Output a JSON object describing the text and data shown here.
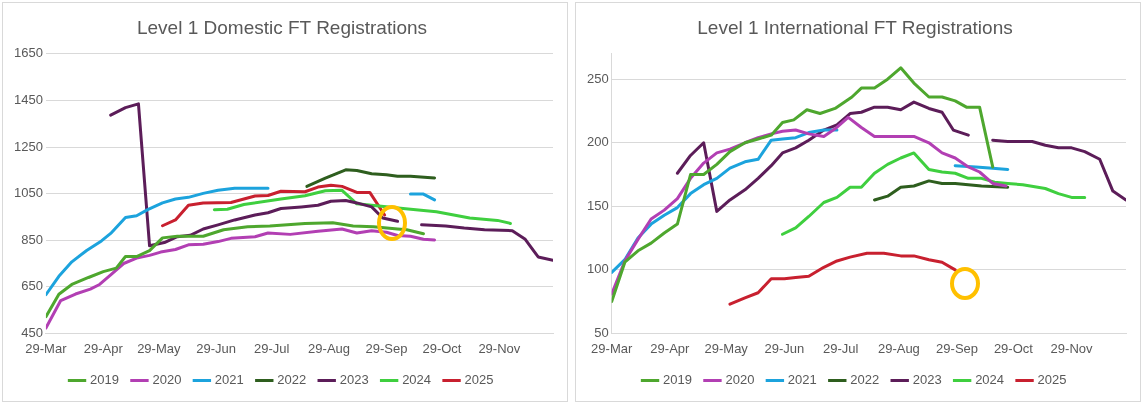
{
  "chart_data": [
    {
      "type": "line",
      "title": "Level 1 Domestic FT Registrations",
      "xlim": [
        "--03-29",
        "--12-28"
      ],
      "ylim": [
        450,
        1650
      ],
      "xticks": [
        {
          "value": "--03-29",
          "label": "29-Mar"
        },
        {
          "value": "--04-29",
          "label": "29-Apr"
        },
        {
          "value": "--05-29",
          "label": "29-May"
        },
        {
          "value": "--06-29",
          "label": "29-Jun"
        },
        {
          "value": "--07-29",
          "label": "29-Jul"
        },
        {
          "value": "--08-29",
          "label": "29-Aug"
        },
        {
          "value": "--09-29",
          "label": "29-Sep"
        },
        {
          "value": "--10-29",
          "label": "29-Oct"
        },
        {
          "value": "--11-29",
          "label": "29-Nov"
        }
      ],
      "yticks": [
        450,
        650,
        850,
        1050,
        1250,
        1450,
        1650
      ],
      "grid": "y",
      "legend": "bottom",
      "marker": "none",
      "line_style": "solid",
      "series": [
        {
          "name": "2019",
          "color": "#4ea72e",
          "x": [
            "--03-29",
            "--04-05",
            "--04-12",
            "--04-21",
            "--04-29",
            "--05-06",
            "--05-11",
            "--05-17",
            "--05-24",
            "--05-31",
            "--06-08",
            "--06-22",
            "--07-03",
            "--07-16",
            "--07-28",
            "--08-16",
            "--08-31",
            "--09-11",
            "--09-22",
            "--10-05",
            "--10-10",
            "--10-19"
          ],
          "values": [
            522,
            618,
            660,
            690,
            715,
            730,
            780,
            780,
            805,
            860,
            867,
            867,
            895,
            908,
            911,
            922,
            925,
            911,
            908,
            898,
            895,
            878
          ]
        },
        {
          "name": "2020",
          "color": "#b23fb3",
          "x": [
            "--03-29",
            "--04-06",
            "--04-14",
            "--04-22",
            "--04-27",
            "--05-03",
            "--05-10",
            "--05-17",
            "--05-24",
            "--05-30",
            "--06-07",
            "--06-14",
            "--06-22",
            "--06-30",
            "--07-07",
            "--07-20",
            "--07-27",
            "--08-08",
            "--08-23",
            "--09-05",
            "--09-13",
            "--09-21",
            "--09-29",
            "--10-05",
            "--10-12",
            "--10-19",
            "--10-25"
          ],
          "values": [
            473,
            591,
            619,
            640,
            660,
            701,
            750,
            773,
            785,
            799,
            810,
            830,
            833,
            844,
            858,
            865,
            881,
            875,
            888,
            898,
            881,
            891,
            884,
            870,
            867,
            854,
            851
          ]
        },
        {
          "name": "2021",
          "color": "#1ca3dd",
          "x": [
            "--03-29",
            "--04-05",
            "--04-12",
            "--04-20",
            "--04-28",
            "--05-03",
            "--05-11",
            "--05-17",
            "--05-23",
            "--05-31",
            "--06-07",
            "--06-14",
            "--06-22",
            "--06-30",
            "--07-09",
            "--07-27",
            "--09-27",
            "--10-12",
            "--10-19",
            "--10-25"
          ],
          "values": [
            616,
            695,
            757,
            806,
            847,
            879,
            947,
            955,
            981,
            1010,
            1027,
            1034,
            1051,
            1064,
            1073,
            1073,
            null,
            1048,
            1048,
            1023
          ]
        },
        {
          "name": "2022",
          "color": "#2e5e1e",
          "x": [
            "--08-17",
            "--08-27",
            "--09-07",
            "--09-13",
            "--09-21",
            "--09-29",
            "--10-05",
            "--10-12",
            "--10-25"
          ],
          "values": [
            1081,
            1116,
            1152,
            1149,
            1135,
            1131,
            1124,
            1124,
            1117
          ]
        },
        {
          "name": "2023",
          "color": "#5c1d59",
          "x": [
            "--05-03",
            "--05-11",
            "--05-18",
            "--05-24",
            "--06-01",
            "--06-08",
            "--06-15",
            "--06-22",
            "--06-30",
            "--07-09",
            "--07-20",
            "--07-27",
            "--08-03",
            "--08-14",
            "--08-23",
            "--08-30",
            "--09-07",
            "--09-13",
            "--09-21",
            "--09-27",
            "--10-05",
            "--10-11",
            "--10-18",
            "--10-31",
            "--11-10",
            "--11-21",
            "--12-06",
            "--12-13",
            "--12-20",
            "--12-28"
          ],
          "values": [
            1387,
            1419,
            1435,
            826,
            840,
            865,
            871,
            898,
            916,
            937,
            958,
            968,
            986,
            993,
            1000,
            1017,
            1020,
            1010,
            993,
            945,
            931,
            null,
            916,
            911,
            902,
            895,
            891,
            854,
            778,
            764
          ]
        },
        {
          "name": "2024",
          "color": "#3fcf3f",
          "x": [
            "--06-28",
            "--07-05",
            "--07-14",
            "--08-03",
            "--08-16",
            "--08-27",
            "--09-05",
            "--09-13",
            "--09-21",
            "--10-08",
            "--10-26",
            "--11-13",
            "--11-28",
            "--12-05"
          ],
          "values": [
            981,
            983,
            1003,
            1027,
            1041,
            1062,
            1064,
            1006,
            1000,
            986,
            972,
            945,
            935,
            922
          ]
        },
        {
          "name": "2025",
          "color": "#c8202f",
          "x": [
            "--05-31",
            "--06-07",
            "--06-14",
            "--06-22",
            "--07-07",
            "--07-20",
            "--07-27",
            "--08-03",
            "--08-16",
            "--08-23",
            "--08-30",
            "--09-05",
            "--09-13",
            "--09-20",
            "--09-28"
          ],
          "values": [
            912,
            937,
            1000,
            1010,
            1012,
            1040,
            1042,
            1060,
            1058,
            1078,
            1086,
            1081,
            1055,
            1055,
            958
          ]
        }
      ]
    },
    {
      "type": "line",
      "title": "Level 1 International FT Registrations",
      "xlim": [
        "--03-29",
        "--12-28"
      ],
      "ylim": [
        50,
        270
      ],
      "xticks": [
        {
          "value": "--03-29",
          "label": "29-Mar"
        },
        {
          "value": "--04-29",
          "label": "29-Apr"
        },
        {
          "value": "--05-29",
          "label": "29-May"
        },
        {
          "value": "--06-29",
          "label": "29-Jun"
        },
        {
          "value": "--07-29",
          "label": "29-Jul"
        },
        {
          "value": "--08-29",
          "label": "29-Aug"
        },
        {
          "value": "--09-29",
          "label": "29-Sep"
        },
        {
          "value": "--10-29",
          "label": "29-Oct"
        },
        {
          "value": "--11-29",
          "label": "29-Nov"
        }
      ],
      "yticks": [
        50,
        100,
        150,
        200,
        250
      ],
      "grid": "y",
      "legend": "bottom",
      "marker": "none",
      "line_style": "solid",
      "series": [
        {
          "name": "2019",
          "color": "#4ea72e",
          "x": [
            "--03-29",
            "--04-05",
            "--04-12",
            "--04-19",
            "--04-26",
            "--05-03",
            "--05-10",
            "--05-17",
            "--05-24",
            "--05-31",
            "--06-08",
            "--06-15",
            "--06-22",
            "--06-28",
            "--07-04",
            "--07-11",
            "--07-18",
            "--07-26",
            "--08-04",
            "--08-09",
            "--08-16",
            "--08-23",
            "--08-30",
            "--09-06",
            "--09-14",
            "--09-21",
            "--09-28",
            "--10-04",
            "--10-11",
            "--10-18"
          ],
          "values": [
            75,
            106,
            115,
            121,
            129,
            136,
            175,
            175,
            183,
            193,
            200,
            203,
            206,
            216,
            218,
            226,
            223,
            227,
            236,
            243,
            243,
            250,
            259,
            247,
            236,
            236,
            233,
            228,
            228,
            181
          ]
        },
        {
          "name": "2020",
          "color": "#b23fb3",
          "x": [
            "--03-29",
            "--04-05",
            "--04-12",
            "--04-19",
            "--04-26",
            "--05-03",
            "--05-10",
            "--05-17",
            "--05-24",
            "--05-31",
            "--06-08",
            "--06-15",
            "--06-22",
            "--06-28",
            "--07-05",
            "--07-12",
            "--07-20",
            "--07-26",
            "--08-02",
            "--08-09",
            "--08-16",
            "--09-06",
            "--09-14",
            "--09-21",
            "--09-28",
            "--10-05",
            "--10-11",
            "--10-18",
            "--10-25"
          ],
          "values": [
            81,
            107,
            124,
            140,
            147,
            156,
            172,
            184,
            192,
            195,
            200,
            204,
            207,
            209,
            210,
            207,
            205,
            211,
            220,
            212,
            205,
            205,
            200,
            192,
            188,
            181,
            177,
            168,
            166
          ]
        },
        {
          "name": "2021",
          "color": "#1ca3dd",
          "x": [
            "--03-29",
            "--04-05",
            "--04-12",
            "--04-19",
            "--04-26",
            "--05-03",
            "--05-10",
            "--05-17",
            "--05-24",
            "--05-31",
            "--06-08",
            "--06-15",
            "--06-22",
            "--06-28",
            "--07-05",
            "--07-12",
            "--07-20",
            "--07-27",
            "--08-26",
            "--09-28",
            "--10-09",
            "--10-18",
            "--10-26"
          ],
          "values": [
            98,
            108,
            125,
            136,
            143,
            149,
            160,
            167,
            172,
            180,
            185,
            187,
            202,
            203,
            204,
            208,
            210,
            210,
            null,
            182,
            181,
            180,
            179
          ]
        },
        {
          "name": "2022",
          "color": "#2e5e1e",
          "x": [
            "--08-16",
            "--08-23",
            "--08-30",
            "--09-06",
            "--09-14",
            "--09-21",
            "--09-28",
            "--10-05",
            "--10-12",
            "--10-26"
          ],
          "values": [
            155,
            158,
            165,
            166,
            170,
            168,
            168,
            167,
            166,
            165
          ]
        },
        {
          "name": "2023",
          "color": "#5c1d59",
          "x": [
            "--05-03",
            "--05-10",
            "--05-17",
            "--05-24",
            "--05-31",
            "--06-08",
            "--06-15",
            "--06-22",
            "--06-28",
            "--07-05",
            "--07-12",
            "--07-20",
            "--07-27",
            "--08-03",
            "--08-09",
            "--08-16",
            "--08-23",
            "--08-30",
            "--09-06",
            "--09-14",
            "--09-21",
            "--09-27",
            "--10-05",
            "--10-11",
            "--10-18",
            "--10-26",
            "--11-08",
            "--11-15",
            "--11-22",
            "--11-29",
            "--12-06",
            "--12-14",
            "--12-21",
            "--12-28"
          ],
          "values": [
            176,
            190,
            200,
            146,
            155,
            163,
            172,
            182,
            192,
            196,
            202,
            210,
            214,
            223,
            224,
            228,
            228,
            226,
            232,
            227,
            224,
            210,
            206,
            null,
            202,
            201,
            201,
            198,
            196,
            196,
            193,
            187,
            162,
            155
          ]
        },
        {
          "name": "2024",
          "color": "#3fcf3f",
          "x": [
            "--06-28",
            "--07-05",
            "--07-12",
            "--07-20",
            "--07-27",
            "--08-03",
            "--08-09",
            "--08-16",
            "--08-23",
            "--08-30",
            "--09-06",
            "--09-14",
            "--09-21",
            "--09-28",
            "--10-05",
            "--10-12",
            "--10-19",
            "--10-26",
            "--11-03",
            "--11-15",
            "--11-22",
            "--11-29",
            "--12-06"
          ],
          "values": [
            128,
            133,
            142,
            153,
            157,
            165,
            165,
            176,
            183,
            188,
            192,
            179,
            177,
            176,
            172,
            172,
            169,
            168,
            167,
            164,
            160,
            157,
            157
          ]
        },
        {
          "name": "2025",
          "color": "#c8202f",
          "x": [
            "--05-31",
            "--06-08",
            "--06-15",
            "--06-22",
            "--06-29",
            "--07-05",
            "--07-12",
            "--07-20",
            "--07-27",
            "--08-03",
            "--08-12",
            "--08-21",
            "--08-30",
            "--09-06",
            "--09-14",
            "--09-21",
            "--09-28"
          ],
          "values": [
            73,
            78,
            82,
            93,
            93,
            94,
            95,
            102,
            107,
            110,
            113,
            113,
            111,
            111,
            108,
            106,
            100
          ]
        }
      ]
    }
  ]
}
